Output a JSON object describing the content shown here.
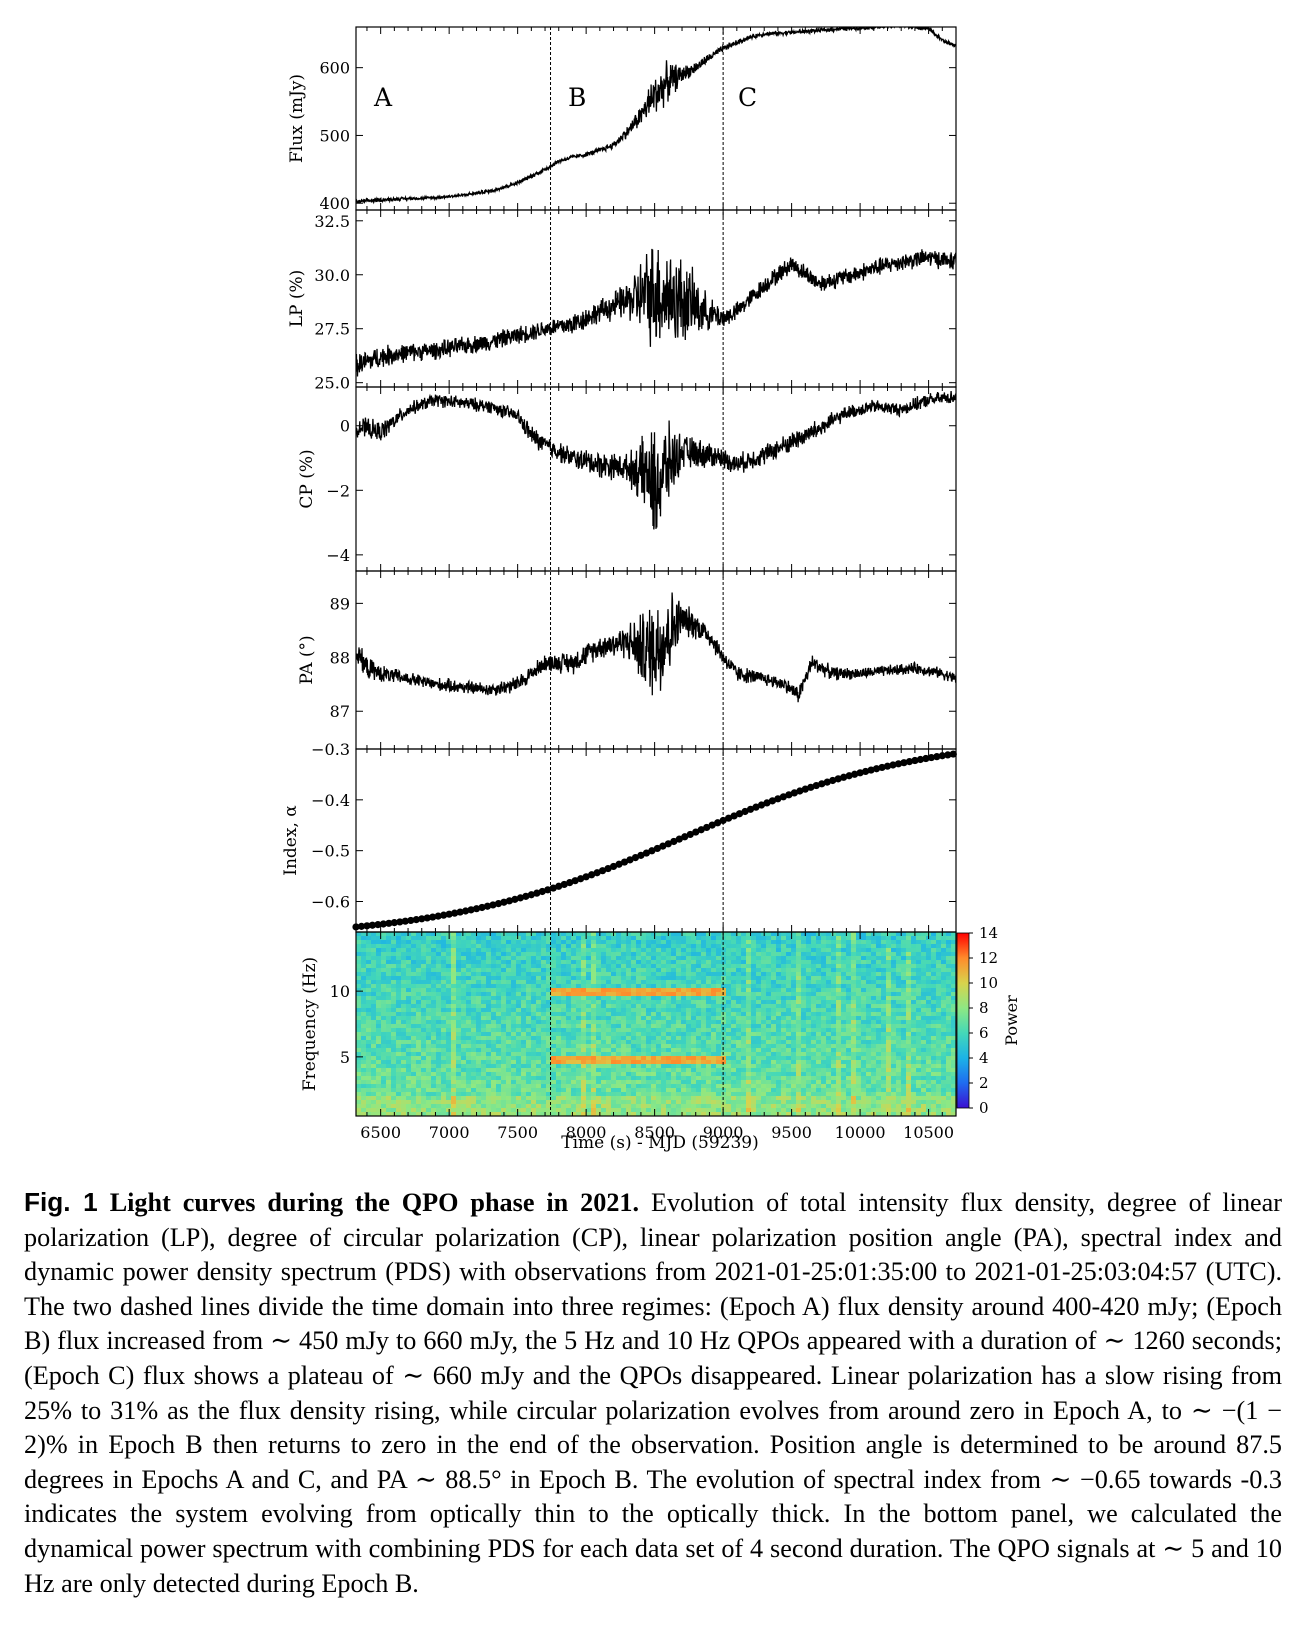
{
  "chart_data": [
    {
      "type": "line",
      "panel": "flux",
      "ylabel": "Flux (mJy)",
      "ylim": [
        390,
        660
      ],
      "yticks": [
        400,
        500,
        600
      ],
      "ytick_labels": [
        "400",
        "500",
        "600"
      ],
      "epoch_labels": [
        "A",
        "B",
        "C"
      ],
      "series": [
        {
          "x": [
            6320,
            6500,
            6700,
            6900,
            7100,
            7300,
            7500,
            7700,
            7800,
            7900,
            8000,
            8100,
            8200,
            8300,
            8400,
            8500,
            8600,
            8700,
            8800,
            8900,
            9000,
            9100,
            9200,
            9300,
            9500,
            9700,
            9900,
            10100,
            10300,
            10500,
            10600,
            10700
          ],
          "y": [
            402,
            405,
            407,
            408,
            412,
            418,
            430,
            450,
            462,
            468,
            472,
            478,
            486,
            505,
            530,
            560,
            580,
            590,
            600,
            615,
            628,
            637,
            645,
            650,
            652,
            655,
            658,
            660,
            662,
            658,
            640,
            632
          ],
          "noise": [
            3,
            3,
            2,
            2,
            2,
            3,
            3,
            3,
            3,
            3,
            3,
            4,
            5,
            8,
            15,
            30,
            28,
            12,
            8,
            6,
            5,
            4,
            3,
            3,
            3,
            3,
            3,
            3,
            3,
            3,
            3,
            3
          ]
        }
      ]
    },
    {
      "type": "line",
      "panel": "lp",
      "ylabel": "LP (%)",
      "ylim": [
        24.8,
        33.0
      ],
      "yticks": [
        25.0,
        27.5,
        30.0,
        32.5
      ],
      "ytick_labels": [
        "25.0",
        "27.5",
        "30.0",
        "32.5"
      ],
      "series": [
        {
          "x": [
            6320,
            6500,
            6700,
            6900,
            7100,
            7300,
            7500,
            7700,
            7900,
            8100,
            8300,
            8500,
            8700,
            8900,
            9000,
            9100,
            9300,
            9500,
            9700,
            9900,
            10100,
            10300,
            10500,
            10700
          ],
          "y": [
            25.8,
            26.2,
            26.4,
            26.5,
            26.7,
            26.9,
            27.2,
            27.5,
            27.7,
            28.3,
            28.8,
            29.2,
            28.8,
            28.2,
            28.0,
            28.3,
            29.5,
            30.5,
            29.6,
            29.9,
            30.3,
            30.6,
            30.8,
            30.6
          ],
          "noise": [
            0.5,
            0.5,
            0.4,
            0.4,
            0.4,
            0.4,
            0.4,
            0.4,
            0.5,
            0.5,
            0.8,
            2.5,
            2.0,
            0.7,
            0.5,
            0.4,
            0.4,
            0.4,
            0.4,
            0.4,
            0.4,
            0.4,
            0.4,
            0.4
          ]
        }
      ]
    },
    {
      "type": "line",
      "panel": "cp",
      "ylabel": "CP (%)",
      "ylim": [
        -4.5,
        1.2
      ],
      "yticks": [
        -4,
        -2,
        0
      ],
      "ytick_labels": [
        "−4",
        "−2",
        "0"
      ],
      "series": [
        {
          "x": [
            6320,
            6500,
            6700,
            6900,
            7100,
            7300,
            7500,
            7600,
            7700,
            7900,
            8100,
            8300,
            8450,
            8500,
            8600,
            8700,
            8900,
            9000,
            9100,
            9300,
            9500,
            9700,
            9900,
            10100,
            10300,
            10500,
            10700
          ],
          "y": [
            0.0,
            -0.2,
            0.5,
            0.8,
            0.7,
            0.6,
            0.3,
            -0.3,
            -0.6,
            -1.0,
            -1.2,
            -1.3,
            -1.5,
            -2.0,
            -1.2,
            -0.8,
            -0.9,
            -1.0,
            -1.2,
            -0.9,
            -0.5,
            -0.1,
            0.4,
            0.6,
            0.5,
            0.8,
            0.9
          ],
          "noise": [
            0.3,
            0.3,
            0.2,
            0.2,
            0.2,
            0.2,
            0.2,
            0.3,
            0.3,
            0.3,
            0.4,
            0.4,
            1.2,
            1.8,
            1.2,
            0.5,
            0.4,
            0.3,
            0.3,
            0.3,
            0.3,
            0.3,
            0.2,
            0.2,
            0.2,
            0.2,
            0.2
          ]
        }
      ]
    },
    {
      "type": "line",
      "panel": "pa",
      "ylabel": "PA (°)",
      "ylim": [
        86.3,
        89.6
      ],
      "yticks": [
        87,
        88,
        89
      ],
      "ytick_labels": [
        "87",
        "88",
        "89"
      ],
      "series": [
        {
          "x": [
            6320,
            6400,
            6500,
            6700,
            6900,
            7100,
            7300,
            7500,
            7700,
            7900,
            8100,
            8300,
            8450,
            8550,
            8650,
            8700,
            8800,
            8900,
            9000,
            9100,
            9300,
            9450,
            9550,
            9650,
            9800,
            10000,
            10200,
            10400,
            10600,
            10700
          ],
          "y": [
            88.1,
            87.8,
            87.7,
            87.6,
            87.5,
            87.45,
            87.4,
            87.5,
            87.9,
            87.9,
            88.2,
            88.3,
            88.1,
            88.3,
            88.6,
            88.7,
            88.6,
            88.4,
            88.0,
            87.7,
            87.6,
            87.5,
            87.3,
            87.9,
            87.7,
            87.7,
            87.75,
            87.8,
            87.7,
            87.6
          ],
          "noise": [
            0.2,
            0.2,
            0.15,
            0.12,
            0.12,
            0.12,
            0.12,
            0.15,
            0.15,
            0.2,
            0.2,
            0.3,
            0.8,
            1.0,
            0.6,
            0.3,
            0.25,
            0.2,
            0.15,
            0.15,
            0.12,
            0.12,
            0.15,
            0.15,
            0.12,
            0.1,
            0.1,
            0.1,
            0.1,
            0.1
          ]
        }
      ]
    },
    {
      "type": "scatter",
      "panel": "index",
      "ylabel": "Index, α",
      "ylim": [
        -0.66,
        -0.3
      ],
      "yticks": [
        -0.6,
        -0.5,
        -0.4,
        -0.3
      ],
      "ytick_labels": [
        "−0.6",
        "−0.5",
        "−0.4",
        "−0.3"
      ],
      "series": [
        {
          "x_start": 6320,
          "x_end": 10680,
          "count": 110,
          "y_start": -0.65,
          "y_end": -0.31
        }
      ]
    },
    {
      "type": "heatmap",
      "panel": "pds",
      "ylabel": "Frequency (Hz)",
      "xlabel": "Time (s) - MJD (59239)",
      "xlim": [
        6320,
        10700
      ],
      "ylim": [
        0.5,
        14.5
      ],
      "xticks": [
        6500,
        7000,
        7500,
        8000,
        8500,
        9000,
        9500,
        10000,
        10500
      ],
      "xtick_labels": [
        "6500",
        "7000",
        "7500",
        "8000",
        "8500",
        "9000",
        "9500",
        "10000",
        "10500"
      ],
      "yticks": [
        5,
        10
      ],
      "ytick_labels": [
        "5",
        "10"
      ],
      "qpo_frequencies_hz": [
        5,
        10
      ],
      "qpo_time_range": [
        7740,
        8990
      ],
      "colorbar": {
        "label": "Power",
        "range": [
          0,
          14
        ],
        "ticks": [
          0,
          2,
          4,
          6,
          8,
          10,
          12,
          14
        ],
        "tick_labels": [
          "0",
          "2",
          "4",
          "6",
          "8",
          "10",
          "12",
          "14"
        ],
        "colormap": "rainbow",
        "colors": [
          "#3b0fd1",
          "#1f6cf0",
          "#1cb3e6",
          "#44d8b8",
          "#8ee883",
          "#d8d34c",
          "#ff8b2b",
          "#ff0000"
        ]
      }
    }
  ],
  "epoch_boundaries": [
    7740,
    9000
  ],
  "caption": {
    "label": "Fig. 1",
    "title": "Light curves during the QPO phase in 2021.",
    "text": " Evolution of total intensity flux density, degree of linear polarization (LP), degree of circular polarization (CP), linear polarization position angle (PA), spectral index and dynamic power density spectrum (PDS) with observations from 2021-01-25:01:35:00 to 2021-01-25:03:04:57 (UTC). The two dashed lines divide the time domain into three regimes: (Epoch A) flux density around 400-420 mJy; (Epoch B) flux increased from ∼ 450 mJy to 660 mJy, the 5 Hz and 10 Hz QPOs appeared with a duration of ∼ 1260 seconds; (Epoch C) flux shows a plateau of ∼ 660 mJy and the QPOs disappeared. Linear polarization has a slow rising from 25% to 31% as the flux density rising, while circular polarization evolves from around zero in Epoch A, to ∼ −(1 − 2)% in Epoch B then returns to zero in the end of the observation. Position angle is determined to be around 87.5 degrees in Epochs A and C, and PA ∼ 88.5° in Epoch B. The evolution of spectral index from ∼ −0.65 towards -0.3 indicates the system evolving from optically thin to the optically thick. In the bottom panel, we calculated the dynamical power spectrum with combining PDS for each data set of 4 second duration. The QPO signals at ∼ 5 and 10 Hz are only detected during Epoch B."
  }
}
